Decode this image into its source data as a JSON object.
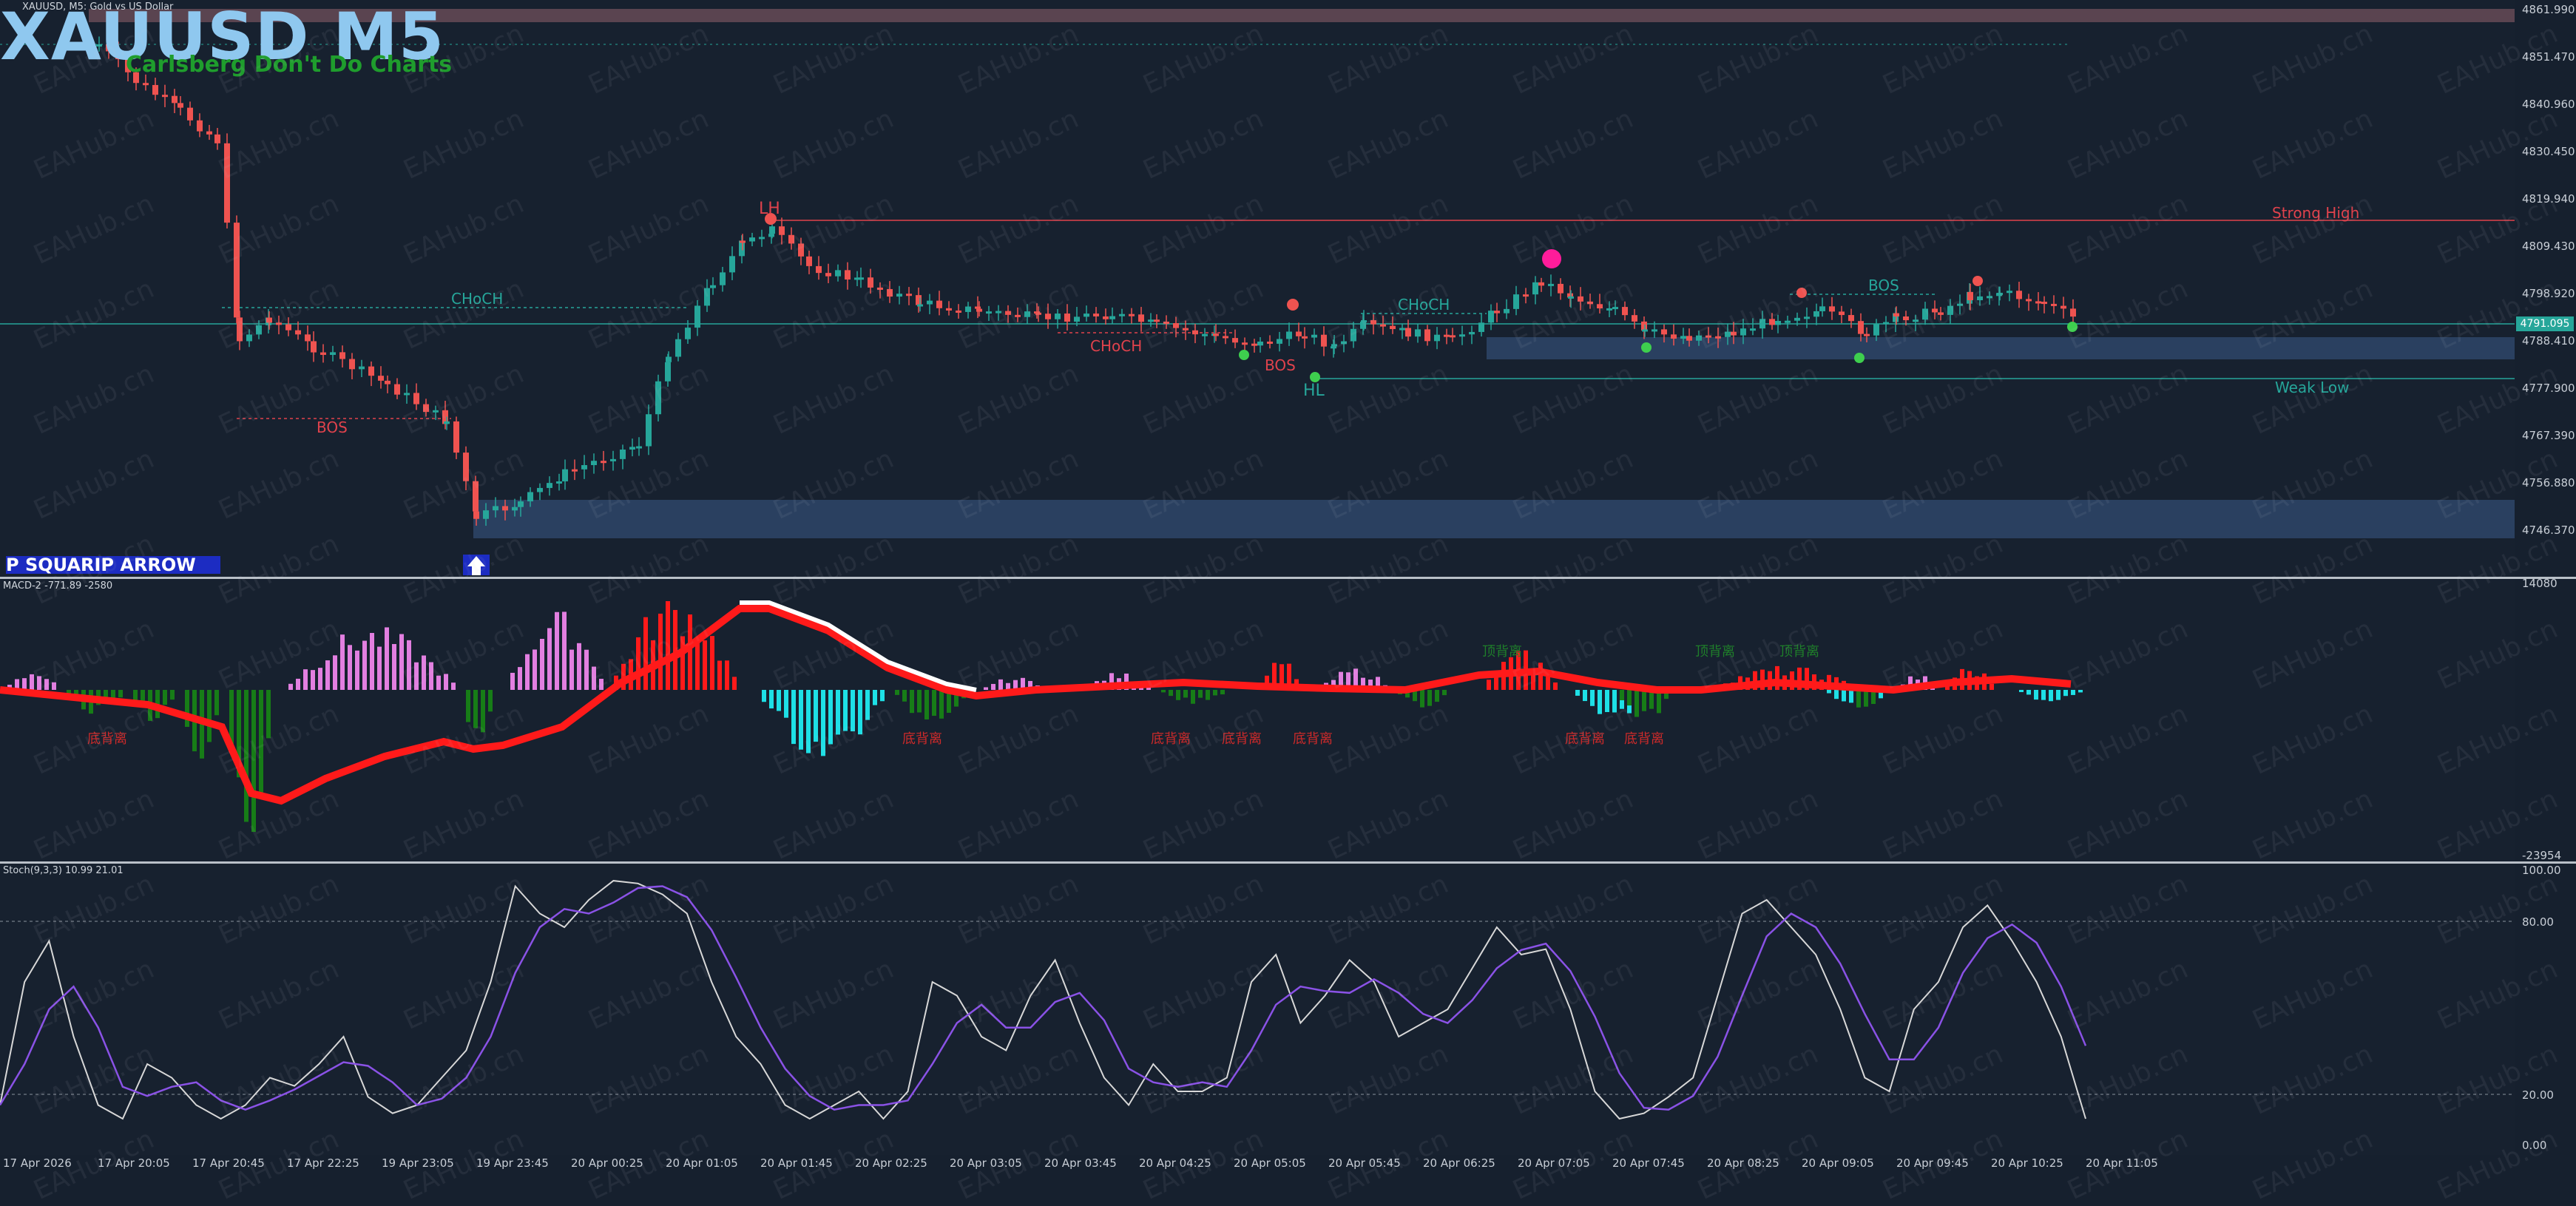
{
  "header": {
    "symbol_line": "XAUUSD, M5:  Gold vs US Dollar",
    "title_big": "XAUUSD M5",
    "subtitle": "Carlsberg Don't Do Charts"
  },
  "price_axis": {
    "labels": [
      "4861.990",
      "4851.470",
      "4840.960",
      "4830.450",
      "4819.940",
      "4809.430",
      "4798.920",
      "4788.410",
      "4777.900",
      "4767.390",
      "4756.880",
      "4746.370"
    ],
    "current_price": "4791.095"
  },
  "price_pane": {
    "markers": {
      "lh": "LH",
      "hl": "HL",
      "strong_high": "Strong High",
      "weak_low": "Weak Low",
      "choch_1": "CHoCH",
      "choch_2": "CHoCH",
      "choch_3": "CHoCH",
      "bos_1": "BOS",
      "bos_2": "BOS",
      "bos_3": "BOS"
    },
    "badge_text": "P SQUARIP ARROW"
  },
  "macd_pane": {
    "header": "MACD-2 -771.89 -2580",
    "axis_top": "14080",
    "axis_bottom": "-23954",
    "divergence_red": [
      "底背离",
      "底背离",
      "底背离",
      "底背离",
      "底背离",
      "底背离",
      "底背离"
    ],
    "divergence_green": [
      "顶背离",
      "顶背离",
      "顶背离"
    ]
  },
  "stoch_pane": {
    "header": "Stoch(9,3,3) 10.99 21.01",
    "levels": [
      "100.00",
      "80.00",
      "20.00",
      "0.00"
    ]
  },
  "time_axis": {
    "labels": [
      "17 Apr 2026",
      "17 Apr 20:05",
      "17 Apr 20:45",
      "17 Apr 22:25",
      "19 Apr 23:05",
      "19 Apr 23:45",
      "20 Apr 00:25",
      "20 Apr 01:05",
      "20 Apr 01:45",
      "20 Apr 02:25",
      "20 Apr 03:05",
      "20 Apr 03:45",
      "20 Apr 04:25",
      "20 Apr 05:05",
      "20 Apr 05:45",
      "20 Apr 06:25",
      "20 Apr 07:05",
      "20 Apr 07:45",
      "20 Apr 08:25",
      "20 Apr 09:05",
      "20 Apr 09:45",
      "20 Apr 10:25",
      "20 Apr 11:05"
    ]
  },
  "watermark": "EAHub.cn",
  "colors": {
    "bull": "#26a69a",
    "bear": "#ef5350",
    "background": "#17212f",
    "macd_pink": "#e27fe0",
    "macd_red": "#ff1a1a",
    "macd_cyan": "#1ee0e6",
    "macd_green": "#177d17"
  }
}
